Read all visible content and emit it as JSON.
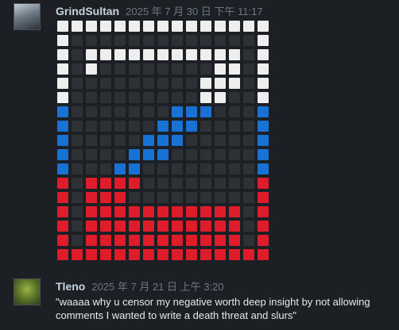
{
  "comments": [
    {
      "author": "GrindSultan",
      "timestamp": "2025 年 7 月 30 日 下午 11:17",
      "grid": [
        [
          "⬜",
          "⬜",
          "⬜",
          "⬜",
          "⬜",
          "⬜",
          "⬜",
          "⬜",
          "⬜",
          "⬜",
          "⬜",
          "⬜",
          "⬜",
          "⬜",
          "⬜"
        ],
        [
          "⬜",
          "⬛",
          "⬛",
          "⬛",
          "⬛",
          "⬛",
          "⬛",
          "⬛",
          "⬛",
          "⬛",
          "⬛",
          "⬛",
          "⬛",
          "⬛",
          "⬜"
        ],
        [
          "⬜",
          "⬛",
          "⬜",
          "⬜",
          "⬜",
          "⬜",
          "⬜",
          "⬜",
          "⬜",
          "⬜",
          "⬜",
          "⬜",
          "⬜",
          "⬛",
          "⬜"
        ],
        [
          "⬜",
          "⬛",
          "⬜",
          "⬛",
          "⬛",
          "⬛",
          "⬛",
          "⬛",
          "⬛",
          "⬛",
          "⬛",
          "⬜",
          "⬜",
          "⬛",
          "⬜"
        ],
        [
          "⬜",
          "⬛",
          "⬛",
          "⬛",
          "⬛",
          "⬛",
          "⬛",
          "⬛",
          "⬛",
          "⬛",
          "⬜",
          "⬜",
          "⬜",
          "⬛",
          "⬜"
        ],
        [
          "⬜",
          "⬛",
          "⬛",
          "⬛",
          "⬛",
          "⬛",
          "⬛",
          "⬛",
          "⬛",
          "⬛",
          "⬜",
          "⬜",
          "⬛",
          "⬛",
          "⬜"
        ],
        [
          "🟦",
          "⬛",
          "⬛",
          "⬛",
          "⬛",
          "⬛",
          "⬛",
          "⬛",
          "🟦",
          "🟦",
          "🟦",
          "⬛",
          "⬛",
          "⬛",
          "🟦"
        ],
        [
          "🟦",
          "⬛",
          "⬛",
          "⬛",
          "⬛",
          "⬛",
          "⬛",
          "🟦",
          "🟦",
          "🟦",
          "⬛",
          "⬛",
          "⬛",
          "⬛",
          "🟦"
        ],
        [
          "🟦",
          "⬛",
          "⬛",
          "⬛",
          "⬛",
          "⬛",
          "🟦",
          "🟦",
          "🟦",
          "⬛",
          "⬛",
          "⬛",
          "⬛",
          "⬛",
          "🟦"
        ],
        [
          "🟦",
          "⬛",
          "⬛",
          "⬛",
          "⬛",
          "🟦",
          "🟦",
          "🟦",
          "⬛",
          "⬛",
          "⬛",
          "⬛",
          "⬛",
          "⬛",
          "🟦"
        ],
        [
          "🟦",
          "⬛",
          "⬛",
          "⬛",
          "🟦",
          "🟦",
          "⬛",
          "⬛",
          "⬛",
          "⬛",
          "⬛",
          "⬛",
          "⬛",
          "⬛",
          "🟦"
        ],
        [
          "🟥",
          "⬛",
          "🟥",
          "🟥",
          "🟥",
          "🟥",
          "⬛",
          "⬛",
          "⬛",
          "⬛",
          "⬛",
          "⬛",
          "⬛",
          "⬛",
          "🟥"
        ],
        [
          "🟥",
          "⬛",
          "🟥",
          "🟥",
          "🟥",
          "⬛",
          "⬛",
          "⬛",
          "⬛",
          "⬛",
          "⬛",
          "⬛",
          "⬛",
          "⬛",
          "🟥"
        ],
        [
          "🟥",
          "⬛",
          "🟥",
          "🟥",
          "🟥",
          "🟥",
          "🟥",
          "🟥",
          "🟥",
          "🟥",
          "🟥",
          "🟥",
          "🟥",
          "⬛",
          "🟥"
        ],
        [
          "🟥",
          "⬛",
          "🟥",
          "🟥",
          "🟥",
          "🟥",
          "🟥",
          "🟥",
          "🟥",
          "🟥",
          "🟥",
          "🟥",
          "🟥",
          "⬛",
          "🟥"
        ],
        [
          "🟥",
          "⬛",
          "🟥",
          "🟥",
          "🟥",
          "🟥",
          "🟥",
          "🟥",
          "🟥",
          "🟥",
          "🟥",
          "🟥",
          "🟥",
          "⬛",
          "🟥"
        ],
        [
          "🟥",
          "🟥",
          "🟥",
          "🟥",
          "🟥",
          "🟥",
          "🟥",
          "🟥",
          "🟥",
          "🟥",
          "🟥",
          "🟥",
          "🟥",
          "🟥",
          "🟥"
        ]
      ]
    },
    {
      "author": "Tleno",
      "timestamp": "2025 年 7 月 21 日 上午 3:20",
      "text": "\"waaaa why u censor my negative worth deep insight by not allowing comments I wanted to write a death threat and slurs\""
    }
  ],
  "square_colors": {
    "⬜": "#eeeeee",
    "⬛": "#2d3034",
    "🟦": "#1872d4",
    "🟥": "#df1d2a"
  }
}
